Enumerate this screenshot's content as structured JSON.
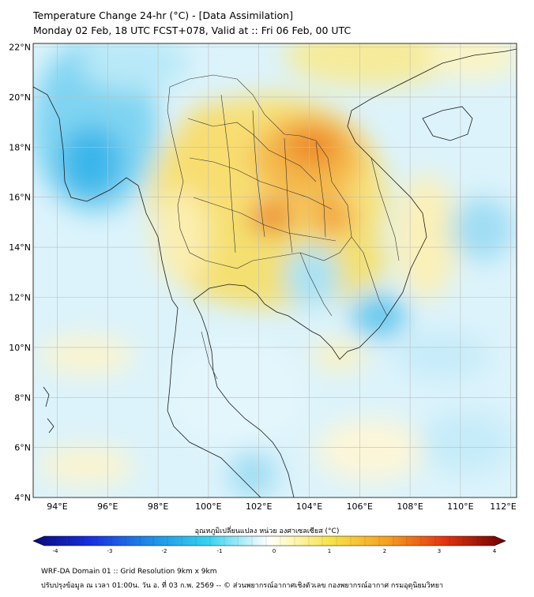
{
  "header": {
    "title": "Temperature Change 24-hr (°C) - [Data Assimilation]",
    "subtitle": "Monday 02 Feb, 18 UTC FCST+078, Valid at :: Fri 06 Feb, 00 UTC"
  },
  "map": {
    "lat_labels": [
      "22°N",
      "20°N",
      "18°N",
      "16°N",
      "14°N",
      "12°N",
      "10°N",
      "8°N",
      "6°N",
      "4°N"
    ],
    "lon_labels": [
      "94°E",
      "96°E",
      "98°E",
      "100°E",
      "102°E",
      "104°E",
      "106°E",
      "108°E",
      "110°E",
      "112°E"
    ],
    "lat_values": [
      22,
      20,
      18,
      16,
      14,
      12,
      10,
      8,
      6,
      4
    ],
    "lon_values": [
      94,
      96,
      98,
      100,
      102,
      104,
      106,
      108,
      110,
      112
    ]
  },
  "colorbar": {
    "title": "อุณหภูมิเปลี่ยนแปลง หน่วย องศาเซลเซียส (°C)",
    "tick_labels": [
      "-4",
      "-3",
      "-2",
      "-1",
      "0",
      "1",
      "2",
      "3",
      "4"
    ],
    "tick_values": [
      -4,
      -3,
      -2,
      -1,
      0,
      1,
      2,
      3,
      4
    ],
    "min": -4,
    "max": 4
  },
  "footer": {
    "line1": "WRF-DA Domain 01 :: Grid Resolution 9km x 9km",
    "line2": "ปรับปรุงข้อมูล ณ เวลา 01:00น. วัน อ. ที่ 03 ก.พ. 2569 -- © ส่วนพยากรณ์อากาศเชิงตัวเลข กองพยากรณ์อากาศ กรมอุตุนิยมวิทยา"
  }
}
